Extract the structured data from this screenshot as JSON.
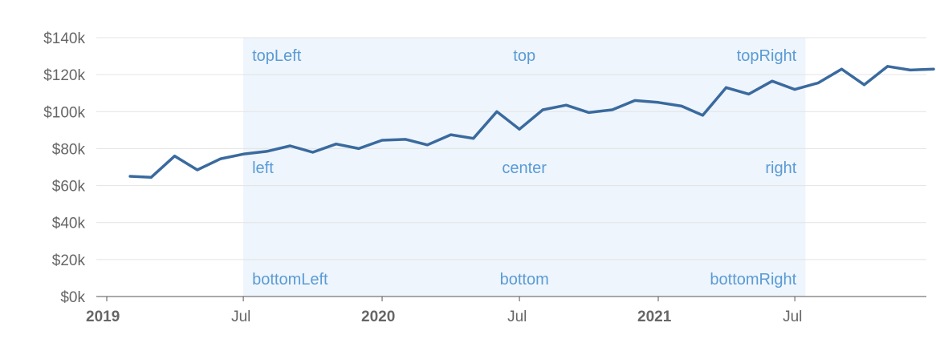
{
  "chart_data": {
    "type": "line",
    "y_axis": {
      "min": 0,
      "max": 140000,
      "step": 20000,
      "tick_labels": [
        "$0k",
        "$20k",
        "$40k",
        "$60k",
        "$80k",
        "$100k",
        "$120k",
        "$140k"
      ],
      "grid": true
    },
    "x_axis": {
      "min": "2019-01-01",
      "max": "2021-12-01",
      "ticks": [
        {
          "date": "2019-01-01",
          "label": "2019",
          "major": true
        },
        {
          "date": "2019-07-01",
          "label": "Jul",
          "major": false
        },
        {
          "date": "2020-01-01",
          "label": "2020",
          "major": true
        },
        {
          "date": "2020-07-01",
          "label": "Jul",
          "major": false
        },
        {
          "date": "2021-01-01",
          "label": "2021",
          "major": true
        },
        {
          "date": "2021-07-01",
          "label": "Jul",
          "major": false
        }
      ]
    },
    "series": [
      {
        "color": "#3a6a9e",
        "points": [
          {
            "x": "2019-02-01",
            "y": 65000
          },
          {
            "x": "2019-03-01",
            "y": 64500
          },
          {
            "x": "2019-04-01",
            "y": 76000
          },
          {
            "x": "2019-05-01",
            "y": 68500
          },
          {
            "x": "2019-06-01",
            "y": 74500
          },
          {
            "x": "2019-07-01",
            "y": 77000
          },
          {
            "x": "2019-08-01",
            "y": 78500
          },
          {
            "x": "2019-09-01",
            "y": 81500
          },
          {
            "x": "2019-10-01",
            "y": 78000
          },
          {
            "x": "2019-11-01",
            "y": 82500
          },
          {
            "x": "2019-12-01",
            "y": 80000
          },
          {
            "x": "2020-01-01",
            "y": 84500
          },
          {
            "x": "2020-02-01",
            "y": 85000
          },
          {
            "x": "2020-03-01",
            "y": 82000
          },
          {
            "x": "2020-04-01",
            "y": 87500
          },
          {
            "x": "2020-05-01",
            "y": 85500
          },
          {
            "x": "2020-06-01",
            "y": 100000
          },
          {
            "x": "2020-07-01",
            "y": 90500
          },
          {
            "x": "2020-08-01",
            "y": 101000
          },
          {
            "x": "2020-09-01",
            "y": 103500
          },
          {
            "x": "2020-10-01",
            "y": 99500
          },
          {
            "x": "2020-11-01",
            "y": 101000
          },
          {
            "x": "2020-12-01",
            "y": 106000
          },
          {
            "x": "2021-01-01",
            "y": 105000
          },
          {
            "x": "2021-02-01",
            "y": 103000
          },
          {
            "x": "2021-03-01",
            "y": 98000
          },
          {
            "x": "2021-04-01",
            "y": 113000
          },
          {
            "x": "2021-05-01",
            "y": 109500
          },
          {
            "x": "2021-06-01",
            "y": 116500
          },
          {
            "x": "2021-07-01",
            "y": 112000
          },
          {
            "x": "2021-08-01",
            "y": 115500
          },
          {
            "x": "2021-09-01",
            "y": 123000
          },
          {
            "x": "2021-10-01",
            "y": 114500
          },
          {
            "x": "2021-11-01",
            "y": 124500
          },
          {
            "x": "2021-12-01",
            "y": 122500
          },
          {
            "x": "2022-01-01",
            "y": 123000
          }
        ]
      }
    ],
    "annotation_region": {
      "x_start": "2019-07-01",
      "x_end": "2021-07-15",
      "fill": "#eef5fc",
      "label_color": "#5a9bd5",
      "labels": [
        {
          "position": "topLeft",
          "text": "topLeft"
        },
        {
          "position": "top",
          "text": "top"
        },
        {
          "position": "topRight",
          "text": "topRight"
        },
        {
          "position": "left",
          "text": "left"
        },
        {
          "position": "center",
          "text": "center"
        },
        {
          "position": "right",
          "text": "right"
        },
        {
          "position": "bottomLeft",
          "text": "bottomLeft"
        },
        {
          "position": "bottom",
          "text": "bottom"
        },
        {
          "position": "bottomRight",
          "text": "bottomRight"
        }
      ]
    }
  }
}
